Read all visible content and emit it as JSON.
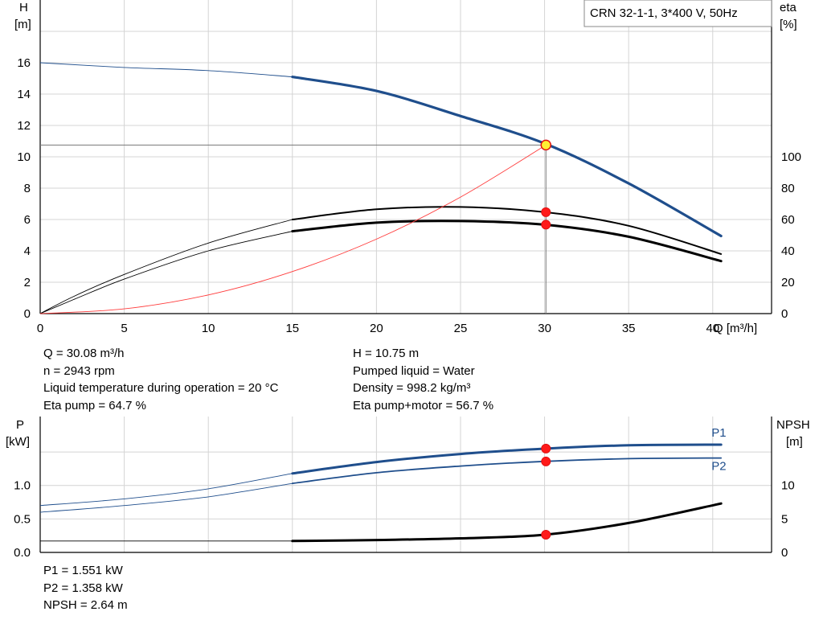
{
  "chart_data": [
    {
      "type": "line",
      "title": "CRN 32-1-1, 3*400 V, 50Hz",
      "xlabel": "Q [m³/h]",
      "ylabel_left": [
        "H",
        "[m]"
      ],
      "ylabel_right": [
        "eta",
        "[%]"
      ],
      "xlim": [
        0,
        43.5
      ],
      "ylim_left": [
        0,
        19
      ],
      "ylim_right": [
        0,
        100
      ],
      "x_ticks": [
        "0",
        "5",
        "10",
        "15",
        "20",
        "25",
        "30",
        "35",
        "40"
      ],
      "y_left_ticks": [
        "0",
        "2",
        "4",
        "6",
        "8",
        "10",
        "12",
        "14",
        "16"
      ],
      "y_right_ticks": [
        "0",
        "20",
        "40",
        "60",
        "80",
        "100"
      ],
      "grid": true,
      "operating_point": {
        "q": 30.08,
        "h": 10.75
      },
      "series": [
        {
          "axis": "left",
          "color": "#1f4e8c",
          "x": [
            0,
            5,
            10,
            15,
            20,
            25,
            30,
            35,
            40.5
          ],
          "y": [
            16,
            15.7,
            15.5,
            15.1,
            14.2,
            12.6,
            10.85,
            8.3,
            4.95
          ],
          "range_from": 15
        },
        {
          "axis": "right",
          "color": "#000000",
          "x": [
            0,
            2,
            5,
            10,
            15,
            20,
            25,
            30,
            35,
            40.5
          ],
          "y": [
            0,
            11,
            25,
            45,
            60,
            66.5,
            68,
            64.7,
            56,
            38
          ],
          "range_from": 15
        },
        {
          "axis": "right",
          "color": "#000000",
          "x": [
            0,
            2,
            5,
            10,
            15,
            20,
            25,
            30,
            35,
            40.5
          ],
          "y": [
            0,
            9,
            22,
            40,
            52.5,
            58,
            59,
            56.7,
            49,
            33.5
          ],
          "range_from": 15
        },
        {
          "axis": "left",
          "color": "#ff3b3b",
          "x": [
            0,
            5,
            10,
            15,
            20,
            25,
            30.08
          ],
          "y": [
            0,
            0.3,
            1.19,
            2.68,
            4.75,
            7.43,
            10.75
          ]
        }
      ],
      "markers": [
        {
          "x": 30.08,
          "y": 10.75,
          "axis": "left",
          "style": "yellow"
        },
        {
          "x": 30.08,
          "y": 64.7,
          "axis": "right",
          "style": "red"
        },
        {
          "x": 30.08,
          "y": 56.7,
          "axis": "right",
          "style": "red"
        }
      ]
    },
    {
      "type": "line",
      "xlim": [
        0,
        43.5
      ],
      "ylabel_left": [
        "P",
        "[kW]"
      ],
      "ylabel_right": [
        "NPSH",
        "[m]"
      ],
      "ylim_left": [
        0,
        1.75
      ],
      "ylim_right": [
        0,
        17.5
      ],
      "y_left_ticks": [
        "0.0",
        "0.5",
        "1.0"
      ],
      "y_right_ticks": [
        "0",
        "5",
        "10"
      ],
      "grid": true,
      "series": [
        {
          "name": "P1",
          "axis": "left",
          "color": "#1f4e8c",
          "x": [
            0,
            5,
            10,
            15,
            20,
            25,
            30,
            35,
            40.5
          ],
          "y": [
            0.7,
            0.8,
            0.95,
            1.18,
            1.35,
            1.47,
            1.55,
            1.6,
            1.61
          ],
          "range_from": 15
        },
        {
          "name": "P2",
          "axis": "left",
          "color": "#1f4e8c",
          "x": [
            0,
            5,
            10,
            15,
            20,
            25,
            30,
            35,
            40.5
          ],
          "y": [
            0.6,
            0.7,
            0.83,
            1.03,
            1.19,
            1.29,
            1.36,
            1.4,
            1.41
          ],
          "range_from": 15
        },
        {
          "axis": "right",
          "color": "#000000",
          "x": [
            0,
            15,
            20,
            25,
            30,
            35,
            40.5
          ],
          "y": [
            1.7,
            1.7,
            1.85,
            2.1,
            2.64,
            4.4,
            7.3
          ],
          "range_from": 15
        }
      ],
      "markers": [
        {
          "x": 30.08,
          "y": 1.551,
          "axis": "left",
          "style": "red"
        },
        {
          "x": 30.08,
          "y": 1.358,
          "axis": "left",
          "style": "red"
        },
        {
          "x": 30.08,
          "y": 2.64,
          "axis": "right",
          "style": "red"
        }
      ]
    }
  ],
  "info": {
    "left": [
      "Q = 30.08 m³/h",
      "n = 2943 rpm",
      "Liquid temperature during operation = 20 °C",
      "Eta pump = 64.7 %"
    ],
    "right": [
      "H = 10.75 m",
      "Pumped liquid = Water",
      "Density = 998.2 kg/m³",
      "Eta pump+motor = 56.7 %"
    ],
    "bottom": [
      "P1 = 1.551 kW",
      "P2 = 1.358 kW",
      "NPSH = 2.64 m"
    ]
  }
}
